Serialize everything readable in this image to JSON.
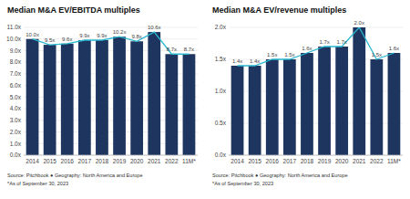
{
  "chart_data": [
    {
      "type": "bar",
      "title": "Median M&A EV/EBITDA multiples",
      "categories": [
        "2014",
        "2015",
        "2016",
        "2017",
        "2018",
        "2019",
        "2020",
        "2021",
        "2022",
        "11M*"
      ],
      "series": [
        {
          "type": "bar",
          "color": "#1e3560",
          "values": [
            10.0,
            9.5,
            9.6,
            9.9,
            9.9,
            10.2,
            9.8,
            10.6,
            8.7,
            8.7
          ],
          "value_labels": [
            "10.0x",
            "9.5x",
            "9.6x",
            "9.9x",
            "9.9x",
            "10.2x",
            "9.8x",
            "10.6x",
            "8.7x",
            "8.7x"
          ]
        },
        {
          "type": "line",
          "color": "#29b8d0",
          "values": [
            10.0,
            9.5,
            9.6,
            9.9,
            9.9,
            10.2,
            9.8,
            10.6,
            8.7,
            8.7
          ]
        }
      ],
      "ylim": [
        0,
        11.0
      ],
      "yticks": [
        {
          "value": 0.0,
          "label": "0.0x"
        },
        {
          "value": 1.0,
          "label": "1.0x"
        },
        {
          "value": 2.0,
          "label": "2.0x"
        },
        {
          "value": 3.0,
          "label": "3.0x"
        },
        {
          "value": 4.0,
          "label": "4.0x"
        },
        {
          "value": 5.0,
          "label": "5.0x"
        },
        {
          "value": 6.0,
          "label": "6.0x"
        },
        {
          "value": 7.0,
          "label": "7.0x"
        },
        {
          "value": 8.0,
          "label": "8.0x"
        },
        {
          "value": 9.0,
          "label": "9.0x"
        },
        {
          "value": 10.0,
          "label": "10.0x"
        },
        {
          "value": 11.0,
          "label": "11.0x"
        }
      ],
      "grid": true,
      "data_labels": true,
      "annotations": [
        "Source: Pitchbook  ●  Geography: North America and Europe",
        "*As of September 30, 2023"
      ]
    },
    {
      "type": "bar",
      "title": "Median M&A EV/revenue multiples",
      "categories": [
        "2014",
        "2015",
        "2016",
        "2017",
        "2018",
        "2019",
        "2020",
        "2021",
        "2022",
        "11M*"
      ],
      "series": [
        {
          "type": "bar",
          "color": "#1e3560",
          "values": [
            1.4,
            1.4,
            1.5,
            1.5,
            1.6,
            1.7,
            1.7,
            2.0,
            1.5,
            1.6
          ],
          "value_labels": [
            "1.4x",
            "1.4x",
            "1.5x",
            "1.5x",
            "1.6x",
            "1.7x",
            "1.7x",
            "2.0x",
            "1.5x",
            "1.6x"
          ]
        },
        {
          "type": "line",
          "color": "#29b8d0",
          "values": [
            1.4,
            1.4,
            1.5,
            1.5,
            1.6,
            1.7,
            1.7,
            2.0,
            1.5,
            1.6
          ]
        }
      ],
      "ylim": [
        0,
        2.0
      ],
      "yticks": [
        {
          "value": 0.0,
          "label": "0.0x"
        },
        {
          "value": 0.5,
          "label": "0.5x"
        },
        {
          "value": 1.0,
          "label": "1.0x"
        },
        {
          "value": 1.5,
          "label": "1.5x"
        },
        {
          "value": 2.0,
          "label": "2.0x"
        }
      ],
      "grid": true,
      "data_labels": true,
      "annotations": [
        "Source: Pitchbook  ●  Geography: North America and Europe",
        "*As of September 30, 2023"
      ]
    }
  ]
}
